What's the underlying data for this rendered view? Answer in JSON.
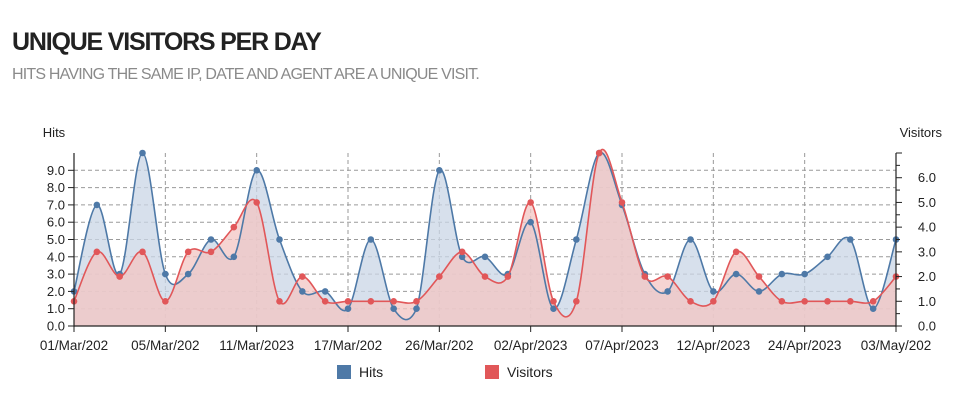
{
  "page": {
    "title": "UNIQUE VISITORS PER DAY",
    "subtitle": "HITS HAVING THE SAME IP, DATE AND AGENT ARE A UNIQUE VISIT."
  },
  "colors": {
    "hits": "#4e79a7",
    "visitors": "#e15759",
    "hits_fill": "#c9d6e6",
    "visitors_fill": "#f3c6c3",
    "grid": "#9a9a9a",
    "axis": "#222222"
  },
  "chart_data": {
    "type": "area",
    "xlabel": "",
    "ylabel": "Hits",
    "y2label": "Visitors",
    "ylim": [
      0,
      10
    ],
    "y2lim": [
      0,
      7
    ],
    "yticks": [
      "0.0",
      "1.0",
      "2.0",
      "3.0",
      "4.0",
      "5.0",
      "6.0",
      "7.0",
      "8.0",
      "9.0"
    ],
    "y2ticks": [
      "0.0",
      "1.0",
      "2.0",
      "3.0",
      "4.0",
      "5.0",
      "6.0"
    ],
    "grid": true,
    "legend_position": "bottom",
    "xtick_labels": [
      {
        "index": 0,
        "label": "01/Mar/202"
      },
      {
        "index": 4,
        "label": "05/Mar/202"
      },
      {
        "index": 8,
        "label": "11/Mar/2023"
      },
      {
        "index": 12,
        "label": "17/Mar/202"
      },
      {
        "index": 16,
        "label": "26/Mar/202"
      },
      {
        "index": 20,
        "label": "02/Apr/2023"
      },
      {
        "index": 24,
        "label": "07/Apr/2023"
      },
      {
        "index": 28,
        "label": "12/Apr/2023"
      },
      {
        "index": 32,
        "label": "24/Apr/2023"
      },
      {
        "index": 36,
        "label": "03/May/202"
      }
    ],
    "num_points": 37,
    "series": [
      {
        "name": "Hits",
        "axis": "left",
        "values": [
          2,
          7,
          3,
          10,
          3,
          3,
          5,
          4,
          9,
          5,
          2,
          2,
          1,
          5,
          1,
          1,
          9,
          4,
          4,
          3,
          6,
          1,
          5,
          10,
          7,
          3,
          2,
          5,
          2,
          3,
          2,
          3,
          3,
          4,
          5,
          1,
          5
        ]
      },
      {
        "name": "Visitors",
        "axis": "right",
        "values": [
          1,
          3,
          2,
          3,
          1,
          3,
          3,
          4,
          5,
          1,
          2,
          1,
          1,
          1,
          1,
          1,
          2,
          3,
          2,
          2,
          5,
          1,
          1,
          7,
          5,
          2,
          2,
          1,
          1,
          3,
          2,
          1,
          1,
          1,
          1,
          1,
          2
        ]
      }
    ]
  }
}
